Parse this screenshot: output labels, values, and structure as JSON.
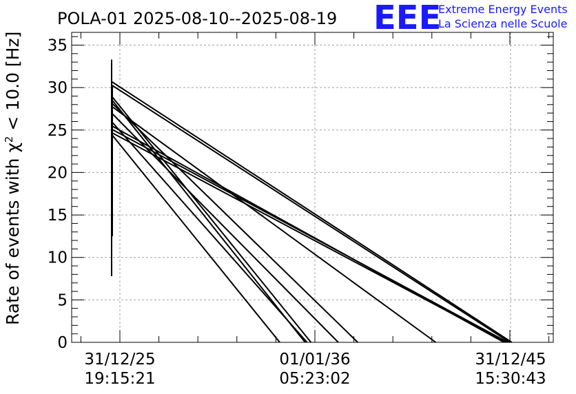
{
  "chart_data": {
    "type": "line",
    "title": "POLA-01 2025-08-10--2025-08-19",
    "ylabel_prefix": "Rate of events with χ",
    "ylabel_sup": "2",
    "ylabel_suffix": " < 10.0 [Hz]",
    "xlabel": "",
    "ylim": [
      0,
      36.5
    ],
    "yticks": [
      0,
      5,
      10,
      15,
      20,
      25,
      30,
      35
    ],
    "ytick_labels": [
      "0",
      "5",
      "10",
      "15",
      "20",
      "25",
      "30",
      "35"
    ],
    "xtick_labels": [
      [
        "31/12/25",
        "19:15:21"
      ],
      [
        "01/01/36",
        "05:23:02"
      ],
      [
        "31/12/45",
        "15:30:43"
      ]
    ],
    "grid": true,
    "logo": {
      "mark": "EEE",
      "line1": "Extreme Energy Events",
      "line2": "La Scienza nelle Scuole"
    },
    "colors": {
      "line": "#000000",
      "grid": "#a0a0a0",
      "logo": "#1a1aff"
    },
    "vertical_segments": [
      {
        "ymin": 7.8,
        "ymax": 33.3
      },
      {
        "ymin": 12.5,
        "ymax": 30.2
      }
    ],
    "series": [
      {
        "y_start": 30.7,
        "y_end_tick_fraction": 2.01
      },
      {
        "y_start": 30.3,
        "y_end_tick_fraction": 2.0
      },
      {
        "y_start": 29.0,
        "y_end_tick_fraction": 0.98
      },
      {
        "y_start": 28.6,
        "y_end_tick_fraction": 0.95
      },
      {
        "y_start": 28.2,
        "y_end_tick_fraction": 1.22
      },
      {
        "y_start": 27.8,
        "y_end_tick_fraction": 1.62
      },
      {
        "y_start": 27.0,
        "y_end_tick_fraction": 1.12
      },
      {
        "y_start": 26.0,
        "y_end_tick_fraction": 0.96
      },
      {
        "y_start": 25.5,
        "y_end_tick_fraction": 1.97
      },
      {
        "y_start": 25.1,
        "y_end_tick_fraction": 1.99
      },
      {
        "y_start": 24.7,
        "y_end_tick_fraction": 1.98
      },
      {
        "y_start": 24.5,
        "y_end_tick_fraction": 0.82
      }
    ]
  }
}
